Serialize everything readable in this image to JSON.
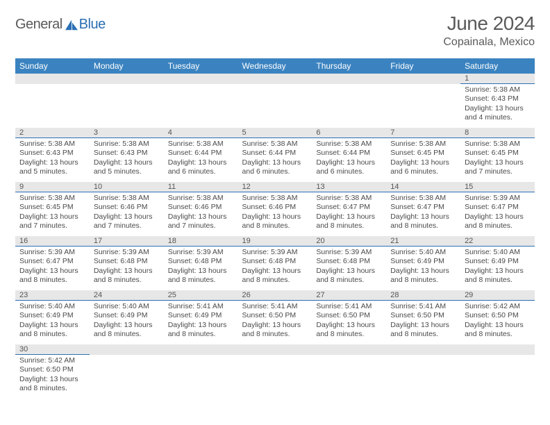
{
  "brand": {
    "part1": "General",
    "part2": "Blue"
  },
  "header": {
    "title": "June 2024",
    "subtitle": "Copainala, Mexico"
  },
  "colors": {
    "header_bg": "#3b83c0",
    "header_text": "#ffffff",
    "daynum_bg": "#e7e7e7",
    "accent_line": "#2a6fb5",
    "body_text": "#4a4a4a",
    "title_text": "#5a5a5a"
  },
  "weekdays": [
    "Sunday",
    "Monday",
    "Tuesday",
    "Wednesday",
    "Thursday",
    "Friday",
    "Saturday"
  ],
  "weeks": [
    [
      null,
      null,
      null,
      null,
      null,
      null,
      {
        "d": "1",
        "sr": "Sunrise: 5:38 AM",
        "ss": "Sunset: 6:43 PM",
        "dl1": "Daylight: 13 hours",
        "dl2": "and 4 minutes."
      }
    ],
    [
      {
        "d": "2",
        "sr": "Sunrise: 5:38 AM",
        "ss": "Sunset: 6:43 PM",
        "dl1": "Daylight: 13 hours",
        "dl2": "and 5 minutes."
      },
      {
        "d": "3",
        "sr": "Sunrise: 5:38 AM",
        "ss": "Sunset: 6:43 PM",
        "dl1": "Daylight: 13 hours",
        "dl2": "and 5 minutes."
      },
      {
        "d": "4",
        "sr": "Sunrise: 5:38 AM",
        "ss": "Sunset: 6:44 PM",
        "dl1": "Daylight: 13 hours",
        "dl2": "and 6 minutes."
      },
      {
        "d": "5",
        "sr": "Sunrise: 5:38 AM",
        "ss": "Sunset: 6:44 PM",
        "dl1": "Daylight: 13 hours",
        "dl2": "and 6 minutes."
      },
      {
        "d": "6",
        "sr": "Sunrise: 5:38 AM",
        "ss": "Sunset: 6:44 PM",
        "dl1": "Daylight: 13 hours",
        "dl2": "and 6 minutes."
      },
      {
        "d": "7",
        "sr": "Sunrise: 5:38 AM",
        "ss": "Sunset: 6:45 PM",
        "dl1": "Daylight: 13 hours",
        "dl2": "and 6 minutes."
      },
      {
        "d": "8",
        "sr": "Sunrise: 5:38 AM",
        "ss": "Sunset: 6:45 PM",
        "dl1": "Daylight: 13 hours",
        "dl2": "and 7 minutes."
      }
    ],
    [
      {
        "d": "9",
        "sr": "Sunrise: 5:38 AM",
        "ss": "Sunset: 6:45 PM",
        "dl1": "Daylight: 13 hours",
        "dl2": "and 7 minutes."
      },
      {
        "d": "10",
        "sr": "Sunrise: 5:38 AM",
        "ss": "Sunset: 6:46 PM",
        "dl1": "Daylight: 13 hours",
        "dl2": "and 7 minutes."
      },
      {
        "d": "11",
        "sr": "Sunrise: 5:38 AM",
        "ss": "Sunset: 6:46 PM",
        "dl1": "Daylight: 13 hours",
        "dl2": "and 7 minutes."
      },
      {
        "d": "12",
        "sr": "Sunrise: 5:38 AM",
        "ss": "Sunset: 6:46 PM",
        "dl1": "Daylight: 13 hours",
        "dl2": "and 8 minutes."
      },
      {
        "d": "13",
        "sr": "Sunrise: 5:38 AM",
        "ss": "Sunset: 6:47 PM",
        "dl1": "Daylight: 13 hours",
        "dl2": "and 8 minutes."
      },
      {
        "d": "14",
        "sr": "Sunrise: 5:38 AM",
        "ss": "Sunset: 6:47 PM",
        "dl1": "Daylight: 13 hours",
        "dl2": "and 8 minutes."
      },
      {
        "d": "15",
        "sr": "Sunrise: 5:39 AM",
        "ss": "Sunset: 6:47 PM",
        "dl1": "Daylight: 13 hours",
        "dl2": "and 8 minutes."
      }
    ],
    [
      {
        "d": "16",
        "sr": "Sunrise: 5:39 AM",
        "ss": "Sunset: 6:47 PM",
        "dl1": "Daylight: 13 hours",
        "dl2": "and 8 minutes."
      },
      {
        "d": "17",
        "sr": "Sunrise: 5:39 AM",
        "ss": "Sunset: 6:48 PM",
        "dl1": "Daylight: 13 hours",
        "dl2": "and 8 minutes."
      },
      {
        "d": "18",
        "sr": "Sunrise: 5:39 AM",
        "ss": "Sunset: 6:48 PM",
        "dl1": "Daylight: 13 hours",
        "dl2": "and 8 minutes."
      },
      {
        "d": "19",
        "sr": "Sunrise: 5:39 AM",
        "ss": "Sunset: 6:48 PM",
        "dl1": "Daylight: 13 hours",
        "dl2": "and 8 minutes."
      },
      {
        "d": "20",
        "sr": "Sunrise: 5:39 AM",
        "ss": "Sunset: 6:48 PM",
        "dl1": "Daylight: 13 hours",
        "dl2": "and 8 minutes."
      },
      {
        "d": "21",
        "sr": "Sunrise: 5:40 AM",
        "ss": "Sunset: 6:49 PM",
        "dl1": "Daylight: 13 hours",
        "dl2": "and 8 minutes."
      },
      {
        "d": "22",
        "sr": "Sunrise: 5:40 AM",
        "ss": "Sunset: 6:49 PM",
        "dl1": "Daylight: 13 hours",
        "dl2": "and 8 minutes."
      }
    ],
    [
      {
        "d": "23",
        "sr": "Sunrise: 5:40 AM",
        "ss": "Sunset: 6:49 PM",
        "dl1": "Daylight: 13 hours",
        "dl2": "and 8 minutes."
      },
      {
        "d": "24",
        "sr": "Sunrise: 5:40 AM",
        "ss": "Sunset: 6:49 PM",
        "dl1": "Daylight: 13 hours",
        "dl2": "and 8 minutes."
      },
      {
        "d": "25",
        "sr": "Sunrise: 5:41 AM",
        "ss": "Sunset: 6:49 PM",
        "dl1": "Daylight: 13 hours",
        "dl2": "and 8 minutes."
      },
      {
        "d": "26",
        "sr": "Sunrise: 5:41 AM",
        "ss": "Sunset: 6:50 PM",
        "dl1": "Daylight: 13 hours",
        "dl2": "and 8 minutes."
      },
      {
        "d": "27",
        "sr": "Sunrise: 5:41 AM",
        "ss": "Sunset: 6:50 PM",
        "dl1": "Daylight: 13 hours",
        "dl2": "and 8 minutes."
      },
      {
        "d": "28",
        "sr": "Sunrise: 5:41 AM",
        "ss": "Sunset: 6:50 PM",
        "dl1": "Daylight: 13 hours",
        "dl2": "and 8 minutes."
      },
      {
        "d": "29",
        "sr": "Sunrise: 5:42 AM",
        "ss": "Sunset: 6:50 PM",
        "dl1": "Daylight: 13 hours",
        "dl2": "and 8 minutes."
      }
    ],
    [
      {
        "d": "30",
        "sr": "Sunrise: 5:42 AM",
        "ss": "Sunset: 6:50 PM",
        "dl1": "Daylight: 13 hours",
        "dl2": "and 8 minutes."
      },
      null,
      null,
      null,
      null,
      null,
      null
    ]
  ]
}
